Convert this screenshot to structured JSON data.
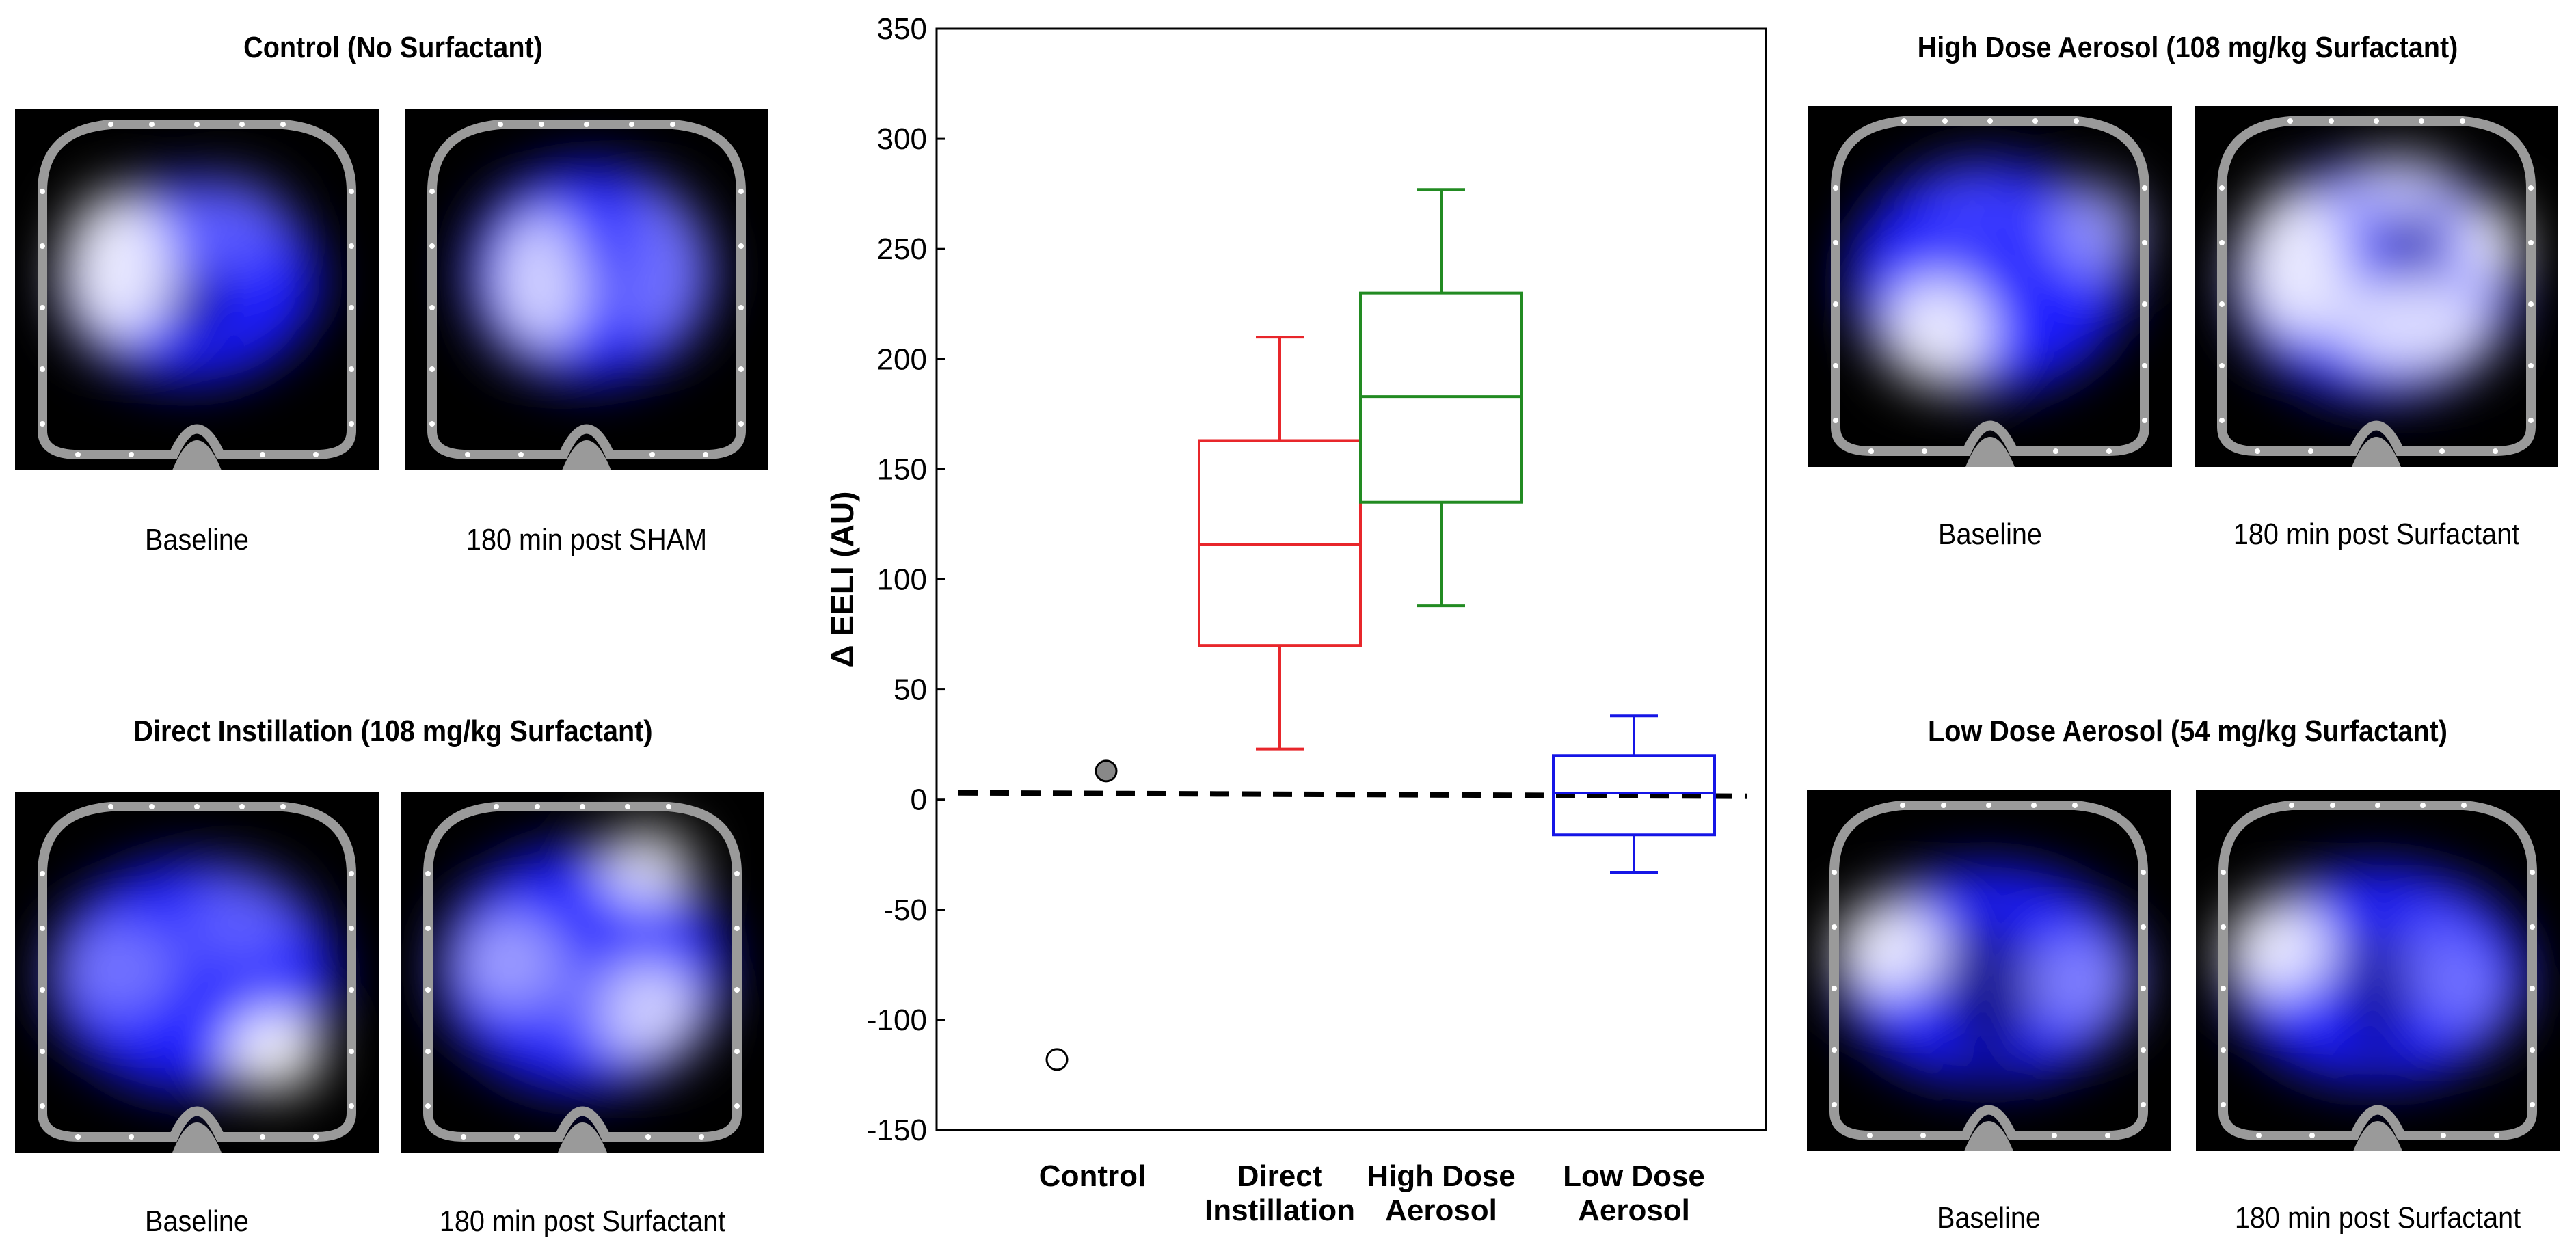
{
  "panels": {
    "control": {
      "title": "Control (No Surfactant)",
      "left_label": "Baseline",
      "right_label": "180 min post SHAM"
    },
    "direct": {
      "title": "Direct Instillation (108 mg/kg Surfactant)",
      "left_label": "Baseline",
      "right_label": "180 min post Surfactant"
    },
    "high": {
      "title": "High Dose Aerosol (108 mg/kg Surfactant)",
      "left_label": "Baseline",
      "right_label": "180 min post Surfactant"
    },
    "low": {
      "title": "Low Dose Aerosol (54 mg/kg Surfactant)",
      "left_label": "Baseline",
      "right_label": "180 min post Surfactant"
    }
  },
  "colors": {
    "direct": "#e8262b",
    "high": "#228b22",
    "low": "#1515e6",
    "scan_blue": "#1a1aff",
    "scan_ring": "#9a9a9a"
  },
  "chart_data": {
    "type": "box",
    "ylabel": "Δ EELI (AU)",
    "ylim": [
      -150,
      350
    ],
    "yticks": [
      -150,
      -100,
      -50,
      0,
      50,
      100,
      150,
      200,
      250,
      300,
      350
    ],
    "reference_line": 0,
    "categories": [
      "Control",
      "Direct Instillation",
      "High Dose Aerosol",
      "Low Dose Aerosol"
    ],
    "category_lines": [
      [
        "Control"
      ],
      [
        "Direct",
        "Instillation"
      ],
      [
        "High Dose",
        "Aerosol"
      ],
      [
        "Low Dose",
        "Aerosol"
      ]
    ],
    "control_points": [
      {
        "value": 13,
        "style": "filled-gray"
      },
      {
        "value": -118,
        "style": "open"
      }
    ],
    "boxes": [
      {
        "group": "Direct Instillation",
        "whisker_low": 23,
        "q1": 70,
        "median": 116,
        "q3": 163,
        "whisker_high": 210,
        "color": "#e8262b"
      },
      {
        "group": "High Dose Aerosol",
        "whisker_low": 88,
        "q1": 135,
        "median": 183,
        "q3": 230,
        "whisker_high": 277,
        "color": "#228b22"
      },
      {
        "group": "Low Dose Aerosol",
        "whisker_low": -33,
        "q1": -16,
        "median": 3,
        "q3": 20,
        "whisker_high": 38,
        "color": "#1515e6"
      }
    ]
  }
}
